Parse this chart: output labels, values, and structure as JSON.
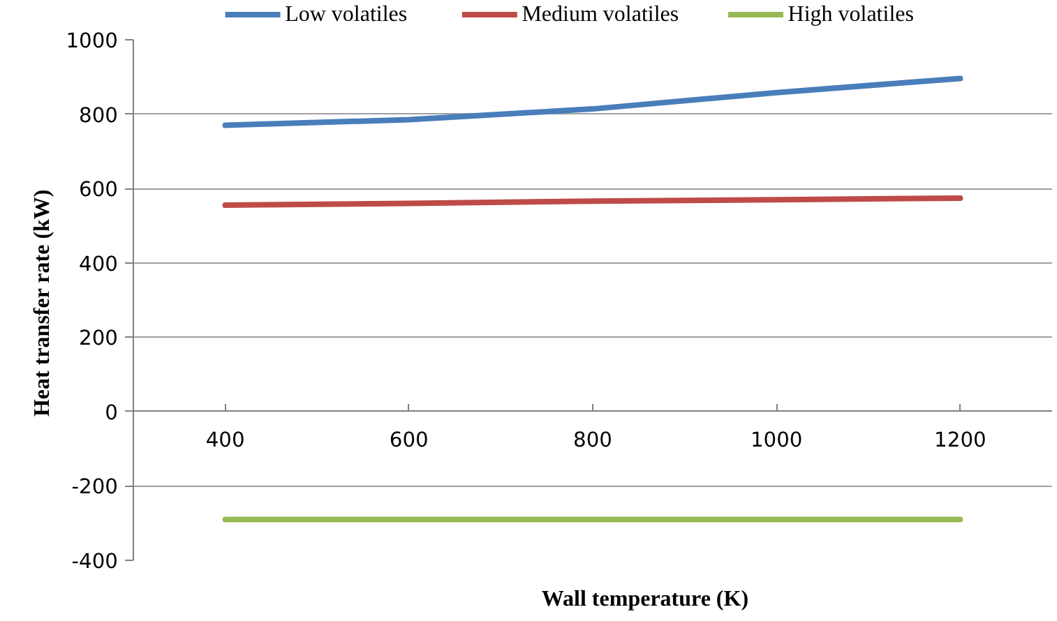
{
  "chart_data": {
    "type": "line",
    "xlabel": "Wall temperature  (K)",
    "ylabel": "Heat  transfer rate (kW)",
    "categories": [
      "400",
      "600",
      "800",
      "1000",
      "1200"
    ],
    "series": [
      {
        "name": "Low volatiles",
        "color": "#4a7ebb",
        "values": [
          770,
          785,
          814,
          858,
          896
        ]
      },
      {
        "name": "Medium volatiles",
        "color": "#be4b48",
        "values": [
          555,
          560,
          566,
          570,
          574
        ]
      },
      {
        "name": "High volatiles",
        "color": "#98b954",
        "values": [
          -290,
          -290,
          -290,
          -290,
          -290
        ]
      }
    ],
    "ylim": [
      -400,
      1000
    ],
    "yticks": [
      -400,
      -200,
      0,
      200,
      400,
      600,
      800,
      1000
    ],
    "grid": "y",
    "legend": "top",
    "marker": "none",
    "line_style": "solid"
  }
}
